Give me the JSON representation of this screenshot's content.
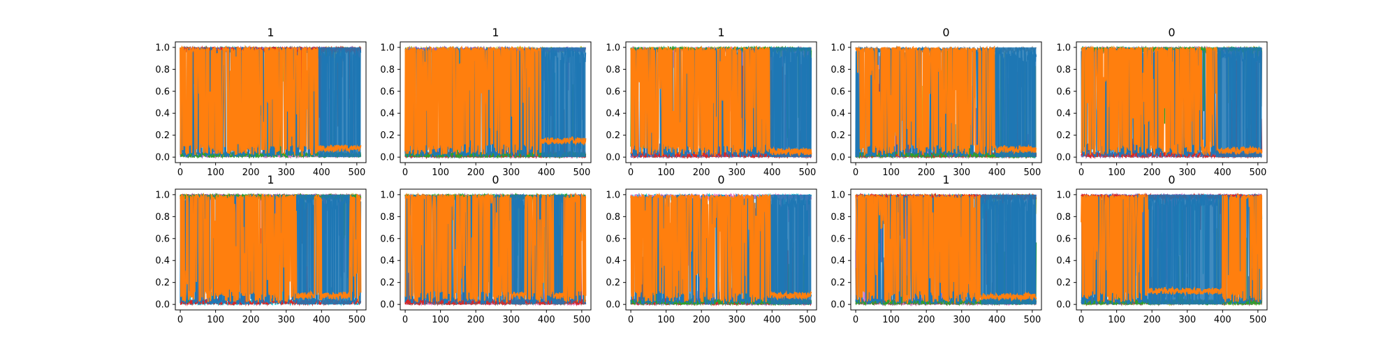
{
  "chart_data": [
    {
      "type": "line",
      "title": "1",
      "xlim": [
        -14,
        526
      ],
      "ylim": [
        -0.05,
        1.05
      ],
      "x_ticks": [
        0,
        100,
        200,
        300,
        400,
        500
      ],
      "y_ticks": [
        0.0,
        0.2,
        0.4,
        0.6,
        0.8,
        1.0
      ],
      "series_count": 10,
      "segment_breakpoints": [
        390
      ],
      "blue_band": [
        0.0,
        1.0
      ],
      "orange_low_level": 0.08
    },
    {
      "type": "line",
      "title": "1",
      "xlim": [
        -14,
        526
      ],
      "ylim": [
        -0.05,
        1.05
      ],
      "x_ticks": [
        0,
        100,
        200,
        300,
        400,
        500
      ],
      "y_ticks": [
        0.0,
        0.2,
        0.4,
        0.6,
        0.8,
        1.0
      ],
      "series_count": 10,
      "segment_breakpoints": [
        385
      ],
      "blue_band": [
        0.0,
        1.0
      ],
      "orange_low_level": 0.15
    },
    {
      "type": "line",
      "title": "1",
      "xlim": [
        -14,
        526
      ],
      "ylim": [
        -0.05,
        1.05
      ],
      "x_ticks": [
        0,
        100,
        200,
        300,
        400,
        500
      ],
      "y_ticks": [
        0.0,
        0.2,
        0.4,
        0.6,
        0.8,
        1.0
      ],
      "series_count": 10,
      "segment_breakpoints": [
        395
      ],
      "blue_band": [
        0.0,
        1.0
      ],
      "orange_low_level": 0.05
    },
    {
      "type": "line",
      "title": "0",
      "xlim": [
        -14,
        526
      ],
      "ylim": [
        -0.05,
        1.05
      ],
      "x_ticks": [
        0,
        100,
        200,
        300,
        400,
        500
      ],
      "y_ticks": [
        0.0,
        0.2,
        0.4,
        0.6,
        0.8,
        1.0
      ],
      "series_count": 10,
      "segment_breakpoints": [
        395
      ],
      "blue_band": [
        0.0,
        1.0
      ],
      "orange_low_level": 0.07
    },
    {
      "type": "line",
      "title": "0",
      "xlim": [
        -14,
        526
      ],
      "ylim": [
        -0.05,
        1.05
      ],
      "x_ticks": [
        0,
        100,
        200,
        300,
        400,
        500
      ],
      "y_ticks": [
        0.0,
        0.2,
        0.4,
        0.6,
        0.8,
        1.0
      ],
      "series_count": 10,
      "segment_breakpoints": [
        385
      ],
      "blue_band": [
        0.0,
        1.0
      ],
      "orange_low_level": 0.06
    },
    {
      "type": "line",
      "title": "1",
      "xlim": [
        -14,
        526
      ],
      "ylim": [
        -0.05,
        1.05
      ],
      "x_ticks": [
        0,
        100,
        200,
        300,
        400,
        500
      ],
      "y_ticks": [
        0.0,
        0.2,
        0.4,
        0.6,
        0.8,
        1.0
      ],
      "series_count": 10,
      "segment_breakpoints": [
        330,
        380,
        400,
        480
      ],
      "blue_band": [
        0.0,
        1.0
      ],
      "orange_low_level": 0.08
    },
    {
      "type": "line",
      "title": "0",
      "xlim": [
        -14,
        526
      ],
      "ylim": [
        -0.05,
        1.05
      ],
      "x_ticks": [
        0,
        100,
        200,
        300,
        400,
        500
      ],
      "y_ticks": [
        0.0,
        0.2,
        0.4,
        0.6,
        0.8,
        1.0
      ],
      "series_count": 10,
      "segment_breakpoints": [
        300,
        340,
        420,
        450
      ],
      "blue_band": [
        0.0,
        1.0
      ],
      "orange_low_level": 0.08
    },
    {
      "type": "line",
      "title": "0",
      "xlim": [
        -14,
        526
      ],
      "ylim": [
        -0.05,
        1.05
      ],
      "x_ticks": [
        0,
        100,
        200,
        300,
        400,
        500
      ],
      "y_ticks": [
        0.0,
        0.2,
        0.4,
        0.6,
        0.8,
        1.0
      ],
      "series_count": 10,
      "segment_breakpoints": [
        395
      ],
      "blue_band": [
        0.0,
        1.0
      ],
      "orange_low_level": 0.08
    },
    {
      "type": "line",
      "title": "1",
      "xlim": [
        -14,
        526
      ],
      "ylim": [
        -0.05,
        1.05
      ],
      "x_ticks": [
        0,
        100,
        200,
        300,
        400,
        500
      ],
      "y_ticks": [
        0.0,
        0.2,
        0.4,
        0.6,
        0.8,
        1.0
      ],
      "series_count": 10,
      "segment_breakpoints": [
        355
      ],
      "blue_band": [
        0.0,
        1.0
      ],
      "orange_low_level": 0.07
    },
    {
      "type": "line",
      "title": "0",
      "xlim": [
        -14,
        526
      ],
      "ylim": [
        -0.05,
        1.05
      ],
      "x_ticks": [
        0,
        100,
        200,
        300,
        400,
        500
      ],
      "y_ticks": [
        0.0,
        0.2,
        0.4,
        0.6,
        0.8,
        1.0
      ],
      "series_count": 10,
      "segment_breakpoints": [
        190,
        400
      ],
      "blue_band": [
        0.0,
        1.0
      ],
      "orange_low_level": 0.12
    }
  ],
  "colors": {
    "series": [
      "#1f77b4",
      "#ff7f0e",
      "#2ca02c",
      "#d62728",
      "#9467bd",
      "#8c564b",
      "#e377c2",
      "#7f7f7f",
      "#bcbd22",
      "#17becf"
    ]
  }
}
